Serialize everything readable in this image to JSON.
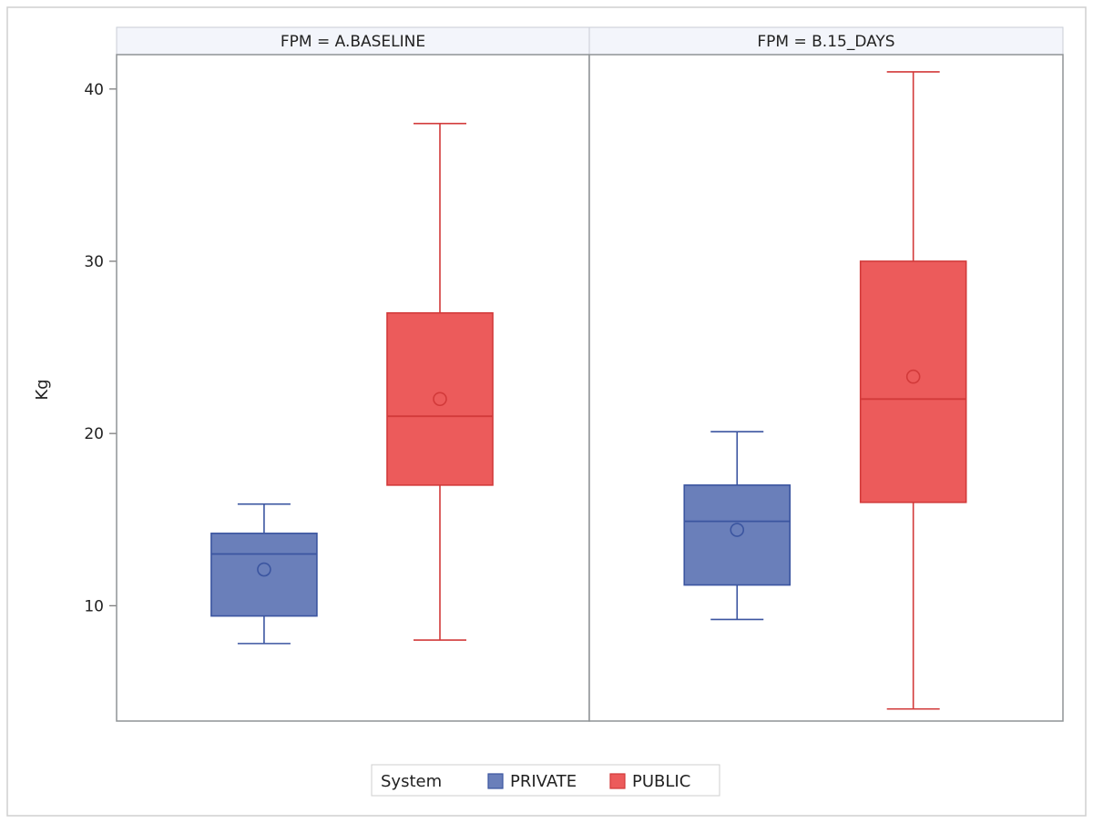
{
  "chart_data": {
    "type": "box",
    "ylabel": "Kg",
    "xlabel": "",
    "ylim": [
      3.3,
      42.0
    ],
    "yticks": [
      10,
      20,
      30,
      40
    ],
    "categories": [
      "PRIVATE",
      "PUBLIC"
    ],
    "panels": [
      {
        "title": "FPM = A.BASELINE",
        "boxes": [
          {
            "group": "PRIVATE",
            "min": 7.8,
            "q1": 9.4,
            "median": 13.0,
            "q3": 14.2,
            "max": 15.9,
            "mean": 12.1
          },
          {
            "group": "PUBLIC",
            "min": 8.0,
            "q1": 17.0,
            "median": 21.0,
            "q3": 27.0,
            "max": 38.0,
            "mean": 22.0
          }
        ]
      },
      {
        "title": "FPM = B.15_DAYS",
        "boxes": [
          {
            "group": "PRIVATE",
            "min": 9.2,
            "q1": 11.2,
            "median": 14.9,
            "q3": 17.0,
            "max": 20.1,
            "mean": 14.4
          },
          {
            "group": "PUBLIC",
            "min": 4.0,
            "q1": 16.0,
            "median": 22.0,
            "q3": 30.0,
            "max": 41.0,
            "mean": 23.3
          }
        ]
      }
    ],
    "legend": {
      "title": "System",
      "placement": "bottom-center",
      "items": [
        {
          "label": "PRIVATE",
          "color": "#6a7fba"
        },
        {
          "label": "PUBLIC",
          "color": "#ec5b5b"
        }
      ]
    },
    "colors": {
      "PRIVATE": {
        "fill": "#6a7fba",
        "stroke": "#3b55a0"
      },
      "PUBLIC": {
        "fill": "#ec5b5b",
        "stroke": "#d23a3a"
      }
    }
  }
}
